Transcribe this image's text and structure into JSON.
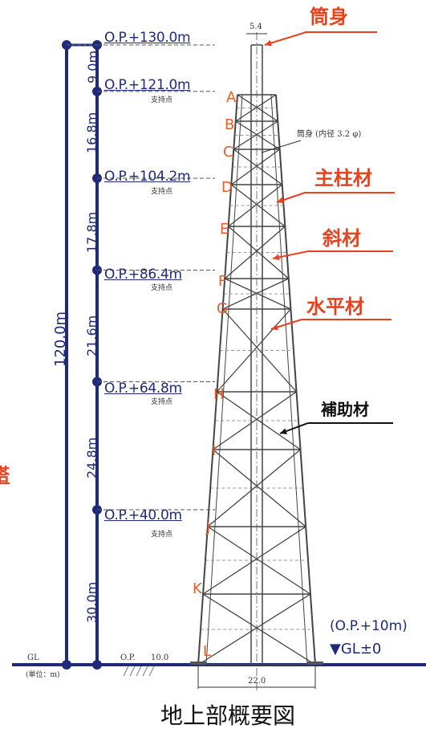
{
  "elevations": [
    {
      "label": "O.P.+130.0m",
      "sub": "",
      "op": 130.0
    },
    {
      "label": "O.P.+121.0m",
      "sub": "支持点",
      "op": 121.0
    },
    {
      "label": "O.P.+104.2m",
      "sub": "支持点",
      "op": 104.2
    },
    {
      "label": "O.P.+86.4m",
      "sub": "支持点",
      "op": 86.4
    },
    {
      "label": "O.P.+64.8m",
      "sub": "支持点",
      "op": 64.8
    },
    {
      "label": "O.P.+40.0m",
      "sub": "支持点",
      "op": 40.0
    }
  ],
  "segments": [
    "9.0m",
    "16.8m",
    "17.8m",
    "21.6m",
    "24.8m",
    "30.0m"
  ],
  "total_height": "120.0m",
  "level_letters": [
    "A",
    "B",
    "C",
    "D",
    "E",
    "F",
    "G",
    "H",
    "I",
    "J",
    "K",
    "L"
  ],
  "callouts": {
    "tube": "筒身",
    "main_column": "主柱材",
    "diagonal": "斜材",
    "horizontal": "水平材",
    "auxiliary": "補助材"
  },
  "tube_note": "筒身 (内径 3.2 φ)",
  "top_width": "5.4",
  "base_width": "22.0",
  "ground": {
    "gl": "GL",
    "unit": "(単位：m)",
    "op_label": "O.P.",
    "op_value": "10.0",
    "op_note": "(O.P.+10m)",
    "gl_note": "▼GL±0"
  },
  "left_edge_fragment": "塔",
  "caption": "地上部概要図",
  "colors": {
    "dim_blue": "#1f2a7a",
    "orange": "#f05a1e",
    "red": "#e8411c",
    "tower": "#444444"
  }
}
